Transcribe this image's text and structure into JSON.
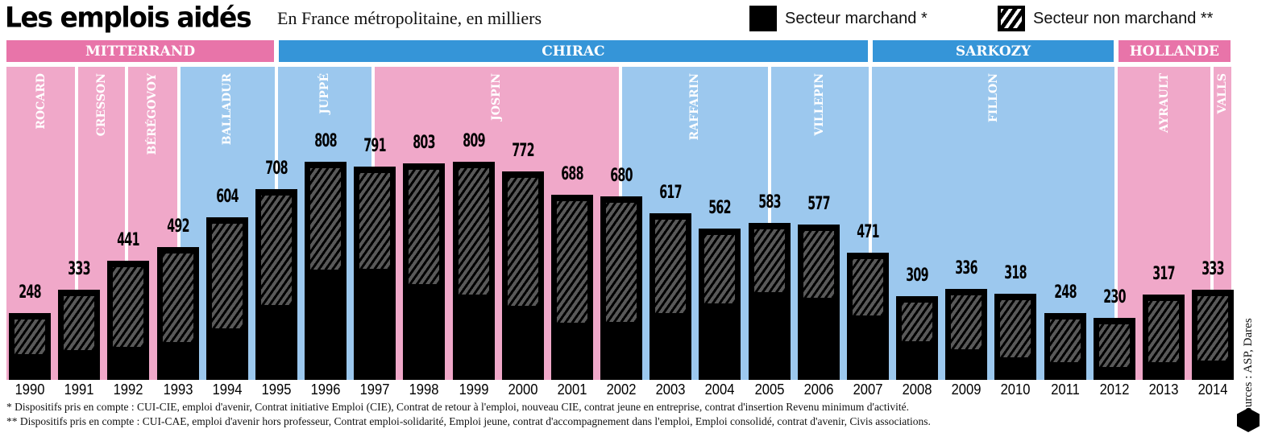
{
  "header": {
    "title": "Les emplois aidés",
    "subtitle": "En France métropolitaine, en milliers"
  },
  "legend": {
    "marchand": "Secteur marchand *",
    "non_marchand": "Secteur non marchand **"
  },
  "colors": {
    "pink_band": "#f0a8c9",
    "blue_band": "#9cc8ee",
    "pink_president": "#e874a9",
    "blue_president": "#3595d8",
    "bar": "#000000"
  },
  "chart_data": {
    "type": "bar",
    "title": "Les emplois aidés",
    "subtitle": "En France métropolitaine, en milliers",
    "xlabel": "",
    "ylabel": "milliers",
    "ylim": [
      0,
      830
    ],
    "categories": [
      "1990",
      "1991",
      "1992",
      "1993",
      "1994",
      "1995",
      "1996",
      "1997",
      "1998",
      "1999",
      "2000",
      "2001",
      "2002",
      "2003",
      "2004",
      "2005",
      "2006",
      "2007",
      "2008",
      "2009",
      "2010",
      "2011",
      "2012",
      "2013",
      "2014"
    ],
    "totals": [
      248,
      333,
      441,
      492,
      604,
      708,
      808,
      791,
      803,
      809,
      772,
      688,
      680,
      617,
      562,
      583,
      577,
      471,
      309,
      336,
      318,
      248,
      230,
      317,
      333
    ],
    "series": [
      {
        "name": "Secteur marchand *",
        "values": [
          95,
          110,
          122,
          139,
          190,
          279,
          409,
          412,
          356,
          315,
          276,
          211,
          214,
          249,
          285,
          326,
          303,
          240,
          142,
          113,
          83,
          65,
          47,
          65,
          71
        ]
      },
      {
        "name": "Secteur non marchand **",
        "values": [
          153,
          223,
          319,
          353,
          414,
          429,
          399,
          379,
          447,
          494,
          496,
          477,
          466,
          368,
          277,
          257,
          274,
          231,
          167,
          223,
          235,
          183,
          183,
          252,
          262
        ]
      }
    ],
    "presidents": [
      {
        "name": "MITTERRAND",
        "start": 1989.53,
        "end": 1995.0,
        "color": "pink"
      },
      {
        "name": "CHIRAC",
        "start": 1995.0,
        "end": 2007.05,
        "color": "blue"
      },
      {
        "name": "SARKOZY",
        "start": 2007.05,
        "end": 2012.04,
        "color": "blue"
      },
      {
        "name": "HOLLANDE",
        "start": 2012.04,
        "end": 2014.4,
        "color": "pink"
      }
    ],
    "prime_ministers": [
      {
        "name": "ROCARD",
        "start": 1989.53,
        "end": 1990.95,
        "color": "pink"
      },
      {
        "name": "CRESSON",
        "start": 1990.95,
        "end": 1991.96,
        "color": "pink"
      },
      {
        "name": "BÉRÉGOVOY",
        "start": 1991.96,
        "end": 1993.02,
        "color": "pink"
      },
      {
        "name": "BALLADUR",
        "start": 1993.02,
        "end": 1995.0,
        "color": "blue"
      },
      {
        "name": "JUPPÉ",
        "start": 1995.0,
        "end": 1996.96,
        "color": "blue"
      },
      {
        "name": "JOSPIN",
        "start": 1996.96,
        "end": 2001.98,
        "color": "pink"
      },
      {
        "name": "RAFFARIN",
        "start": 2001.98,
        "end": 2005.0,
        "color": "blue"
      },
      {
        "name": "VILLEPIN",
        "start": 2005.0,
        "end": 2007.05,
        "color": "blue"
      },
      {
        "name": "FILLON",
        "start": 2007.05,
        "end": 2012.04,
        "color": "blue"
      },
      {
        "name": "AYRAULT",
        "start": 2012.04,
        "end": 2013.98,
        "color": "pink"
      },
      {
        "name": "VALLS",
        "start": 2013.98,
        "end": 2014.4,
        "color": "pink"
      }
    ]
  },
  "footer": {
    "note1": "* Dispositifs pris en compte : CUI-CIE, emploi d'avenir, Contrat initiative Emploi (CIE), Contrat de retour à l'emploi, nouveau CIE, contrat jeune en entreprise, contrat d'insertion Revenu minimum d'activité.",
    "note2": "** Dispositifs pris en compte : CUI-CAE, emploi d'avenir hors professeur, Contrat emploi-solidarité, Emploi jeune, contrat d'accompagnement dans l'emploi, Emploi consolidé, contrat d'avenir, Civis associations.",
    "source": "Sources : ASP, Dares",
    "logo": "BIG"
  }
}
